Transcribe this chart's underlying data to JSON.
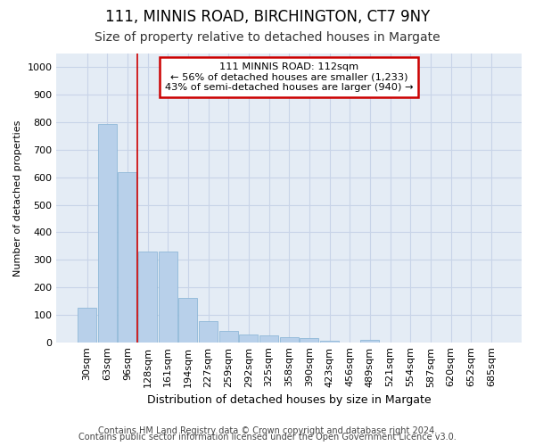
{
  "title1": "111, MINNIS ROAD, BIRCHINGTON, CT7 9NY",
  "title2": "Size of property relative to detached houses in Margate",
  "xlabel": "Distribution of detached houses by size in Margate",
  "ylabel": "Number of detached properties",
  "footnote1": "Contains HM Land Registry data © Crown copyright and database right 2024.",
  "footnote2": "Contains public sector information licensed under the Open Government Licence v3.0.",
  "bar_labels": [
    "30sqm",
    "63sqm",
    "96sqm",
    "128sqm",
    "161sqm",
    "194sqm",
    "227sqm",
    "259sqm",
    "292sqm",
    "325sqm",
    "358sqm",
    "390sqm",
    "423sqm",
    "456sqm",
    "489sqm",
    "521sqm",
    "554sqm",
    "587sqm",
    "620sqm",
    "652sqm",
    "685sqm"
  ],
  "bar_values": [
    125,
    795,
    620,
    330,
    330,
    162,
    78,
    40,
    28,
    25,
    18,
    14,
    7,
    0,
    10,
    0,
    0,
    0,
    0,
    0,
    0
  ],
  "bar_color": "#b8d0ea",
  "bar_edge_color": "#90b8d8",
  "ylim": [
    0,
    1050
  ],
  "yticks": [
    0,
    100,
    200,
    300,
    400,
    500,
    600,
    700,
    800,
    900,
    1000
  ],
  "red_line_x": 2.5,
  "red_line_color": "#cc0000",
  "annotation_text": "111 MINNIS ROAD: 112sqm\n← 56% of detached houses are smaller (1,233)\n43% of semi-detached houses are larger (940) →",
  "annotation_box_color": "#ffffff",
  "annotation_box_edge_color": "#cc0000",
  "grid_color": "#c8d4e8",
  "background_color": "#e4ecf5",
  "title1_fontsize": 12,
  "title2_fontsize": 10,
  "xlabel_fontsize": 9,
  "ylabel_fontsize": 8,
  "xtick_fontsize": 8,
  "ytick_fontsize": 8,
  "footnote_fontsize": 7
}
